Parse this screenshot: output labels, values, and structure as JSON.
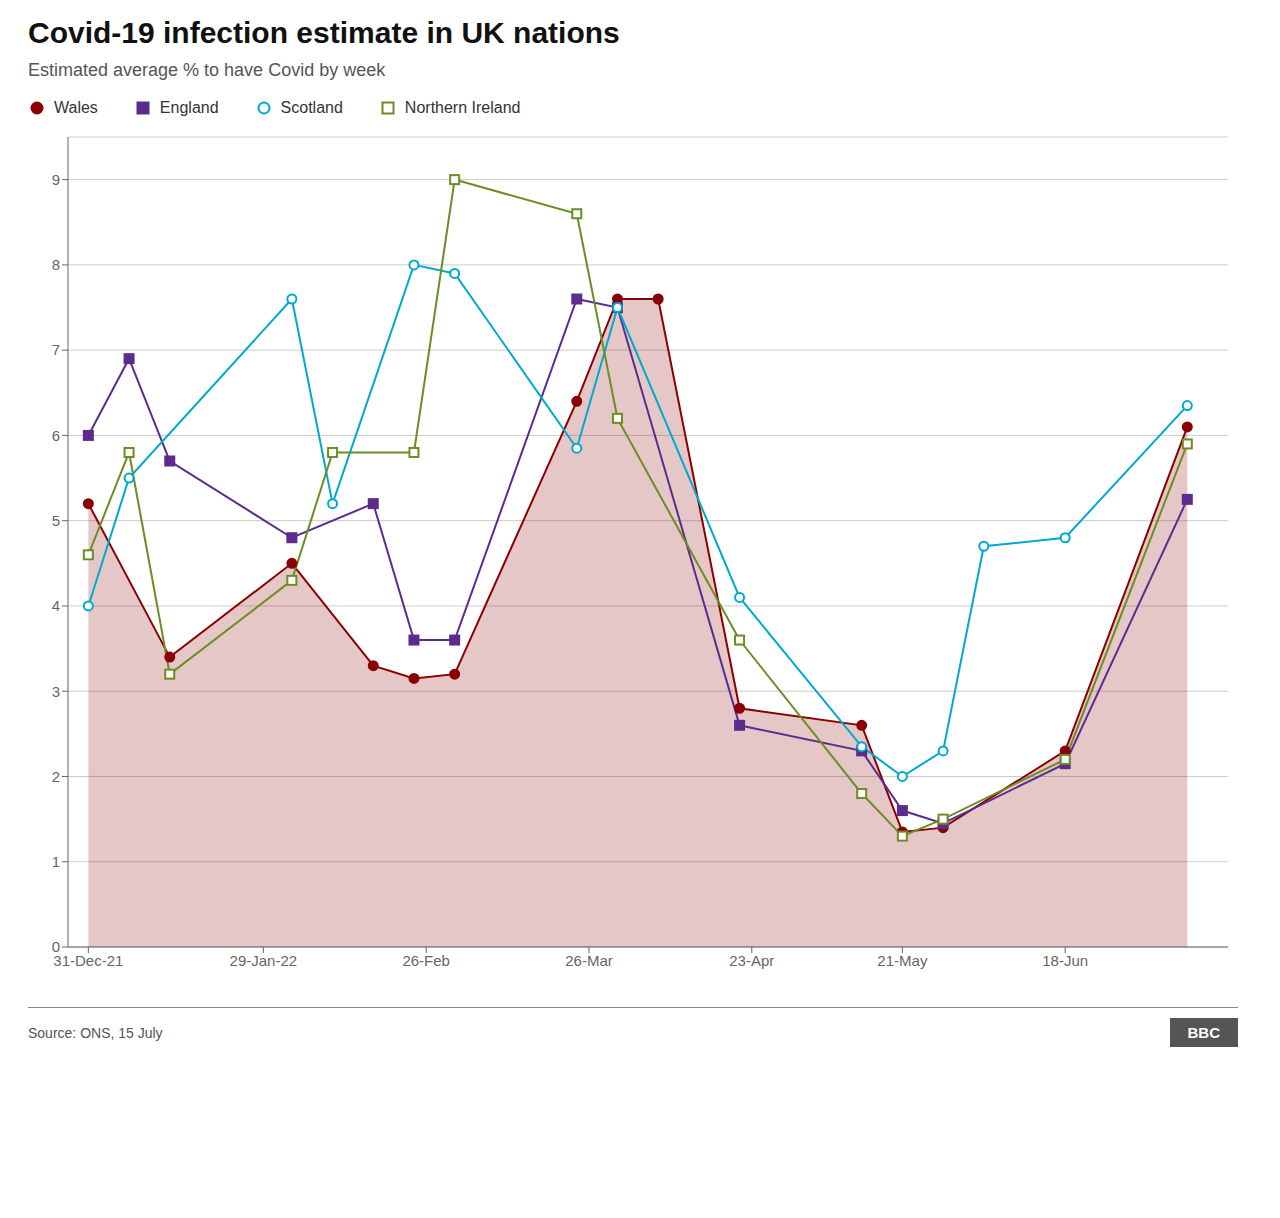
{
  "chart_data": {
    "type": "line",
    "title": "Covid-19 infection estimate in UK nations",
    "subtitle": "Estimated average % to have Covid by week",
    "annotations": [
      "Source: ONS, 15 July",
      "BBC"
    ],
    "legend": "top left",
    "grid": "y",
    "xlim": [
      -0.5,
      28
    ],
    "xticks": [
      {
        "value": 0,
        "label": "31-Dec-21"
      },
      {
        "value": 4.3,
        "label": "29-Jan-22"
      },
      {
        "value": 8.3,
        "label": "26-Feb"
      },
      {
        "value": 12.3,
        "label": "26-Mar"
      },
      {
        "value": 16.3,
        "label": "23-Apr"
      },
      {
        "value": 20.0,
        "label": "21-May"
      },
      {
        "value": 24.0,
        "label": "18-Jun"
      }
    ],
    "ylim": [
      0,
      9.5
    ],
    "yticks": [
      0,
      1,
      2,
      3,
      4,
      5,
      6,
      7,
      8,
      9
    ],
    "series": [
      {
        "name": "Wales",
        "type": "area",
        "color": "#8B0000",
        "marker": "circle",
        "x": [
          0,
          2,
          5,
          7,
          8,
          9,
          12,
          13,
          14,
          16,
          19,
          20,
          21,
          24,
          27
        ],
        "values": [
          5.2,
          3.4,
          4.5,
          3.3,
          3.15,
          3.2,
          6.4,
          7.6,
          7.6,
          2.8,
          2.6,
          1.35,
          1.4,
          2.3,
          6.1
        ]
      },
      {
        "name": "England",
        "type": "line",
        "color": "#5B2C8D",
        "marker": "square",
        "x": [
          0,
          1,
          2,
          5,
          7,
          8,
          9,
          12,
          13,
          16,
          19,
          20,
          21,
          24,
          27
        ],
        "values": [
          6.0,
          6.9,
          5.7,
          4.8,
          5.2,
          3.6,
          3.6,
          7.6,
          7.5,
          2.6,
          2.3,
          1.6,
          1.45,
          2.15,
          5.25
        ]
      },
      {
        "name": "Scotland",
        "type": "line",
        "color": "#00AACC",
        "marker": "open circle",
        "x": [
          0,
          1,
          5,
          6,
          8,
          9,
          12,
          13,
          16,
          19,
          20,
          21,
          22,
          24,
          27
        ],
        "values": [
          4.0,
          5.5,
          7.6,
          5.2,
          8.0,
          7.9,
          5.85,
          7.5,
          4.1,
          2.35,
          2.0,
          2.3,
          4.7,
          4.8,
          6.35
        ]
      },
      {
        "name": "Northern Ireland",
        "type": "line",
        "color": "#6B8E23",
        "marker": "open square",
        "x": [
          0,
          1,
          2,
          5,
          6,
          8,
          9,
          12,
          13,
          16,
          19,
          20,
          21,
          24,
          27
        ],
        "values": [
          4.6,
          5.8,
          3.2,
          4.3,
          5.8,
          5.8,
          9.0,
          8.6,
          6.2,
          3.6,
          1.8,
          1.3,
          1.5,
          2.2,
          5.9
        ]
      }
    ]
  }
}
